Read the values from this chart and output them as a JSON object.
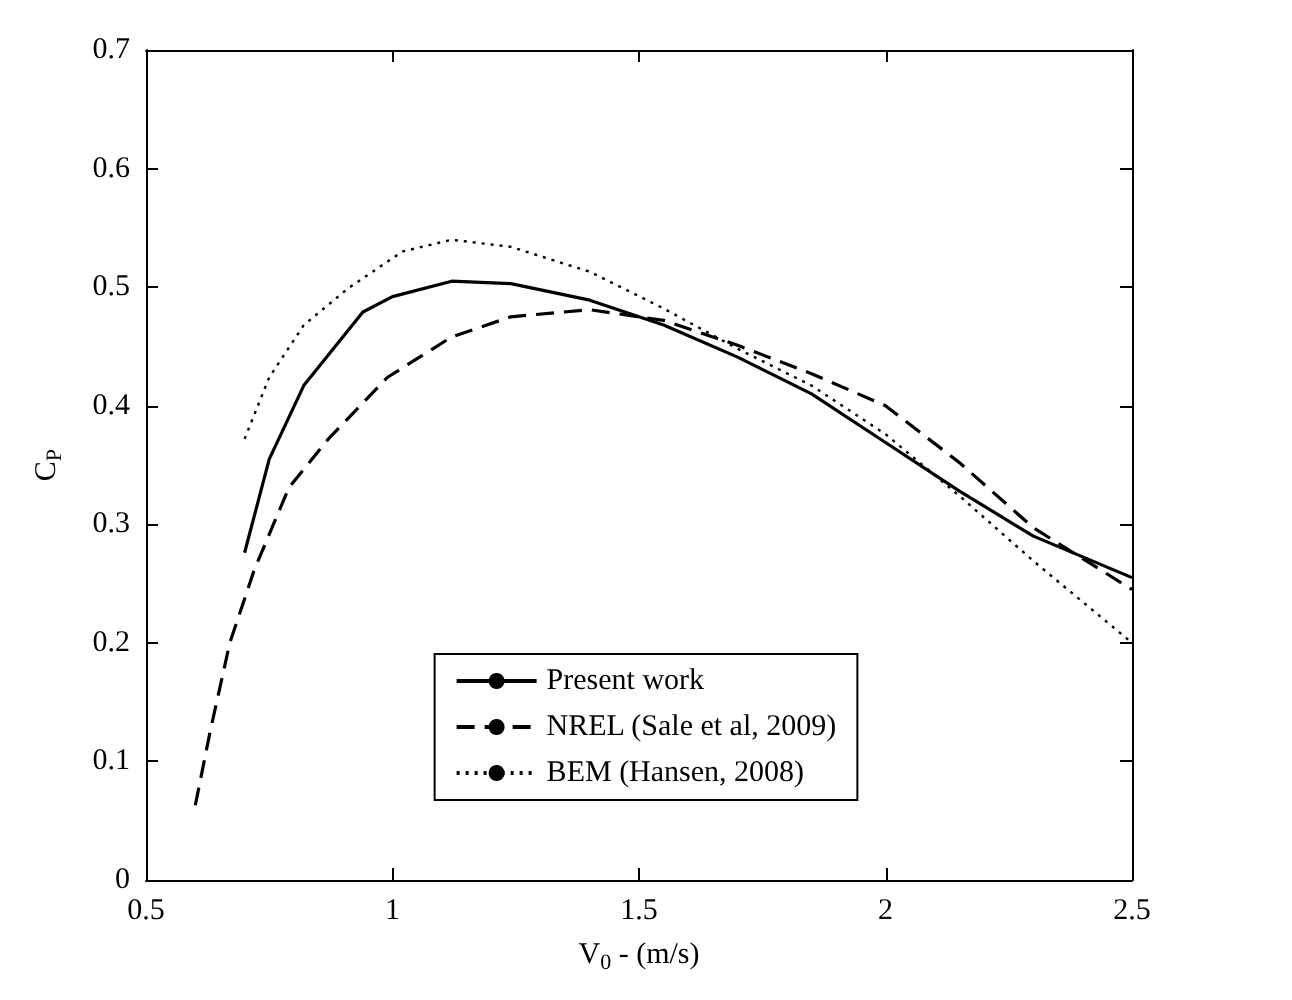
{
  "chart_data": {
    "type": "line",
    "xlabel": "V$_{0}$ - (m/s)",
    "ylabel": "C$_{P}$",
    "xlim": [
      0.5,
      2.5
    ],
    "xticks": [
      0.5,
      1,
      1.5,
      2,
      2.5
    ],
    "ylim": [
      0,
      0.7
    ],
    "yticks": [
      0,
      0.1,
      0.2,
      0.3,
      0.4,
      0.5,
      0.6,
      0.7
    ],
    "grid": false,
    "legend": "bottom",
    "marker": "none",
    "series": [
      {
        "name": "Present work",
        "color": "#000000",
        "line_style": "solid",
        "x": [
          0.7,
          0.75,
          0.82,
          0.94,
          1.0,
          1.12,
          1.24,
          1.4,
          1.55,
          1.7,
          1.85,
          2.0,
          2.15,
          2.3,
          2.5
        ],
        "values": [
          0.276,
          0.355,
          0.417,
          0.479,
          0.492,
          0.505,
          0.503,
          0.489,
          0.468,
          0.441,
          0.41,
          0.369,
          0.328,
          0.29,
          0.255
        ]
      },
      {
        "name": "NREL (Sale et al, 2009)",
        "color": "#000000",
        "line_style": "dashed",
        "x": [
          0.6,
          0.63,
          0.67,
          0.72,
          0.79,
          0.87,
          0.99,
          1.12,
          1.24,
          1.4,
          1.55,
          1.7,
          1.85,
          2.0,
          2.15,
          2.3,
          2.5
        ],
        "values": [
          0.063,
          0.125,
          0.2,
          0.262,
          0.331,
          0.372,
          0.424,
          0.458,
          0.475,
          0.481,
          0.472,
          0.451,
          0.427,
          0.4,
          0.352,
          0.297,
          0.245
        ]
      },
      {
        "name": "BEM (Hansen, 2008)",
        "color": "#000000",
        "line_style": "dotted",
        "x": [
          0.7,
          0.75,
          0.82,
          0.91,
          1.02,
          1.12,
          1.24,
          1.4,
          1.55,
          1.7,
          1.85,
          2.0,
          2.15,
          2.3,
          2.5
        ],
        "values": [
          0.372,
          0.424,
          0.468,
          0.499,
          0.53,
          0.54,
          0.534,
          0.513,
          0.482,
          0.448,
          0.417,
          0.376,
          0.324,
          0.269,
          0.2
        ]
      }
    ]
  }
}
